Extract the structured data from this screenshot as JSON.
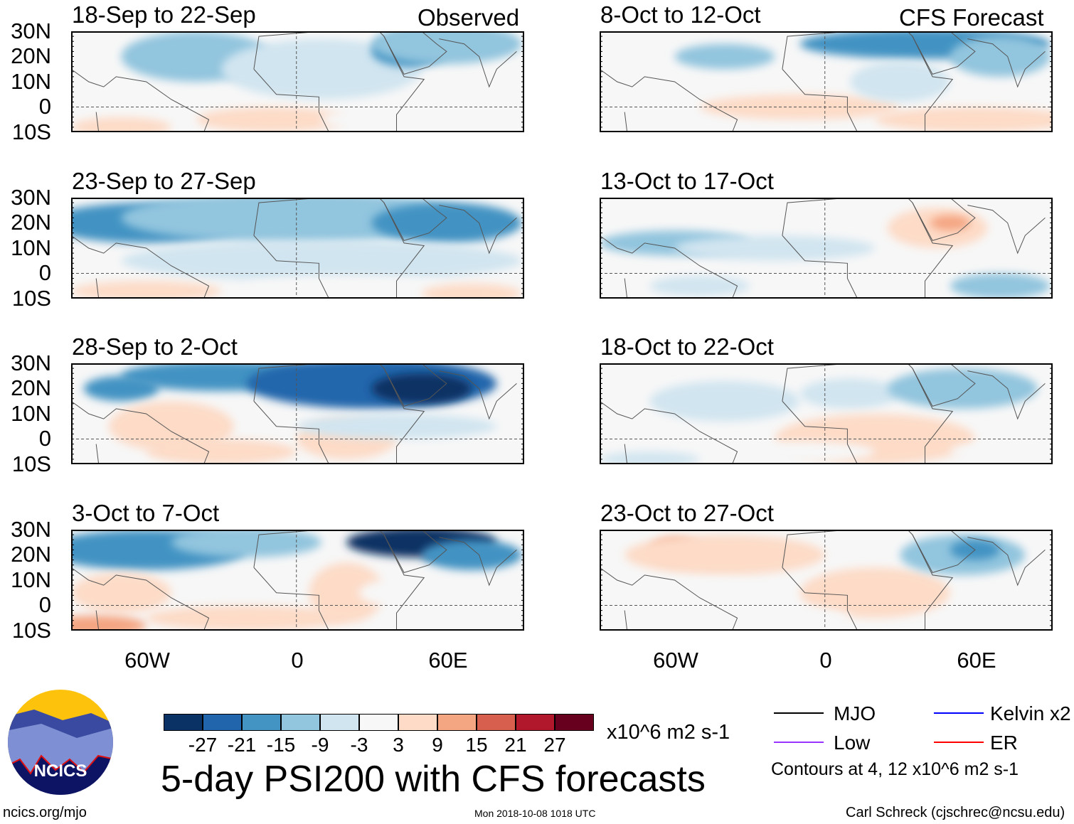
{
  "headers": {
    "observed": "Observed",
    "forecast": "CFS Forecast"
  },
  "lat_labels": [
    "30N",
    "20N",
    "10N",
    "0",
    "10S"
  ],
  "lon_labels": [
    "60W",
    "0",
    "60E"
  ],
  "panels": {
    "left": [
      {
        "title": "18-Sep to 22-Sep",
        "blobs": [
          [
            -40,
            20,
            30,
            10,
            -9
          ],
          [
            10,
            15,
            40,
            12,
            -6
          ],
          [
            45,
            22,
            15,
            6,
            -15
          ],
          [
            60,
            25,
            30,
            8,
            -9
          ],
          [
            -10,
            -5,
            30,
            5,
            6
          ],
          [
            40,
            -5,
            30,
            5,
            3
          ],
          [
            -70,
            -8,
            20,
            4,
            6
          ]
        ]
      },
      {
        "title": "23-Sep to 27-Sep",
        "blobs": [
          [
            -60,
            20,
            40,
            8,
            -15
          ],
          [
            0,
            22,
            70,
            10,
            -9
          ],
          [
            60,
            20,
            30,
            8,
            -15
          ],
          [
            10,
            5,
            80,
            8,
            -3
          ],
          [
            -60,
            -7,
            30,
            4,
            9
          ],
          [
            20,
            -5,
            40,
            4,
            3
          ],
          [
            70,
            -8,
            20,
            4,
            6
          ]
        ]
      },
      {
        "title": "28-Sep to 2-Oct",
        "blobs": [
          [
            -30,
            25,
            40,
            6,
            -15
          ],
          [
            30,
            22,
            50,
            10,
            -21
          ],
          [
            50,
            20,
            20,
            6,
            -27
          ],
          [
            -70,
            20,
            15,
            5,
            -15
          ],
          [
            -50,
            5,
            25,
            10,
            6
          ],
          [
            -30,
            -5,
            30,
            5,
            9
          ],
          [
            20,
            0,
            20,
            8,
            6
          ],
          [
            40,
            5,
            40,
            5,
            -3
          ]
        ]
      },
      {
        "title": "3-Oct to 7-Oct",
        "blobs": [
          [
            -60,
            22,
            40,
            8,
            -15
          ],
          [
            -20,
            25,
            30,
            6,
            -9
          ],
          [
            50,
            25,
            30,
            6,
            -27
          ],
          [
            70,
            20,
            20,
            6,
            -15
          ],
          [
            -70,
            5,
            20,
            8,
            9
          ],
          [
            -20,
            -5,
            40,
            5,
            9
          ],
          [
            20,
            5,
            15,
            12,
            6
          ],
          [
            45,
            5,
            20,
            6,
            3
          ],
          [
            -80,
            -8,
            20,
            4,
            15
          ]
        ]
      }
    ],
    "right": [
      {
        "title": "8-Oct to 12-Oct",
        "blobs": [
          [
            -40,
            20,
            20,
            5,
            -9
          ],
          [
            40,
            25,
            50,
            6,
            -15
          ],
          [
            70,
            20,
            20,
            8,
            -9
          ],
          [
            -10,
            0,
            40,
            5,
            6
          ],
          [
            60,
            -5,
            40,
            5,
            6
          ],
          [
            30,
            10,
            20,
            8,
            -3
          ]
        ]
      },
      {
        "title": "13-Oct to 17-Oct",
        "blobs": [
          [
            -60,
            12,
            30,
            5,
            -9
          ],
          [
            -20,
            10,
            40,
            5,
            -6
          ],
          [
            45,
            18,
            20,
            8,
            9
          ],
          [
            50,
            20,
            8,
            3,
            15
          ],
          [
            0,
            -5,
            60,
            4,
            3
          ],
          [
            -50,
            -5,
            20,
            4,
            -6
          ],
          [
            70,
            -5,
            20,
            5,
            -9
          ]
        ]
      },
      {
        "title": "18-Oct to 22-Oct",
        "blobs": [
          [
            -40,
            15,
            30,
            8,
            -6
          ],
          [
            10,
            18,
            20,
            6,
            -6
          ],
          [
            55,
            20,
            30,
            8,
            -9
          ],
          [
            20,
            0,
            40,
            10,
            6
          ],
          [
            -10,
            -5,
            30,
            4,
            3
          ],
          [
            -70,
            -8,
            20,
            3,
            -3
          ],
          [
            70,
            -5,
            20,
            4,
            3
          ]
        ]
      },
      {
        "title": "23-Oct to 27-Oct",
        "blobs": [
          [
            -60,
            22,
            10,
            5,
            15
          ],
          [
            -40,
            20,
            40,
            8,
            6
          ],
          [
            -50,
            5,
            30,
            5,
            3
          ],
          [
            20,
            5,
            30,
            10,
            6
          ],
          [
            55,
            20,
            25,
            8,
            -9
          ],
          [
            60,
            22,
            10,
            4,
            -15
          ],
          [
            -10,
            -5,
            20,
            4,
            3
          ]
        ]
      }
    ]
  },
  "colorbar": {
    "colors": [
      "#0b3264",
      "#2166ac",
      "#4393c3",
      "#92c5de",
      "#d1e5f0",
      "#f7f7f7",
      "#fddbc7",
      "#f4a582",
      "#d6604d",
      "#b2182b",
      "#67001f"
    ],
    "labels": [
      "-27",
      "-21",
      "-15",
      "-9",
      "-3",
      "3",
      "9",
      "15",
      "21",
      "27"
    ],
    "units": "x10^6 m2 s-1"
  },
  "title": "5-day PSI200 with CFS forecasts",
  "legend": {
    "items": [
      {
        "label": "MJO",
        "color": "#000000"
      },
      {
        "label": "Kelvin x2",
        "color": "#0000ff"
      },
      {
        "label": "Low",
        "color": "#9933ff"
      },
      {
        "label": "ER",
        "color": "#ff0000"
      }
    ],
    "note": "Contours at 4, 12 x10^6 m2 s-1"
  },
  "logo": "NCICS",
  "footer": {
    "url": "ncics.org/mjo",
    "timestamp": "Mon 2018-10-08 1018 UTC",
    "author": "Carl Schreck (cjschrec@ncsu.edu)"
  }
}
